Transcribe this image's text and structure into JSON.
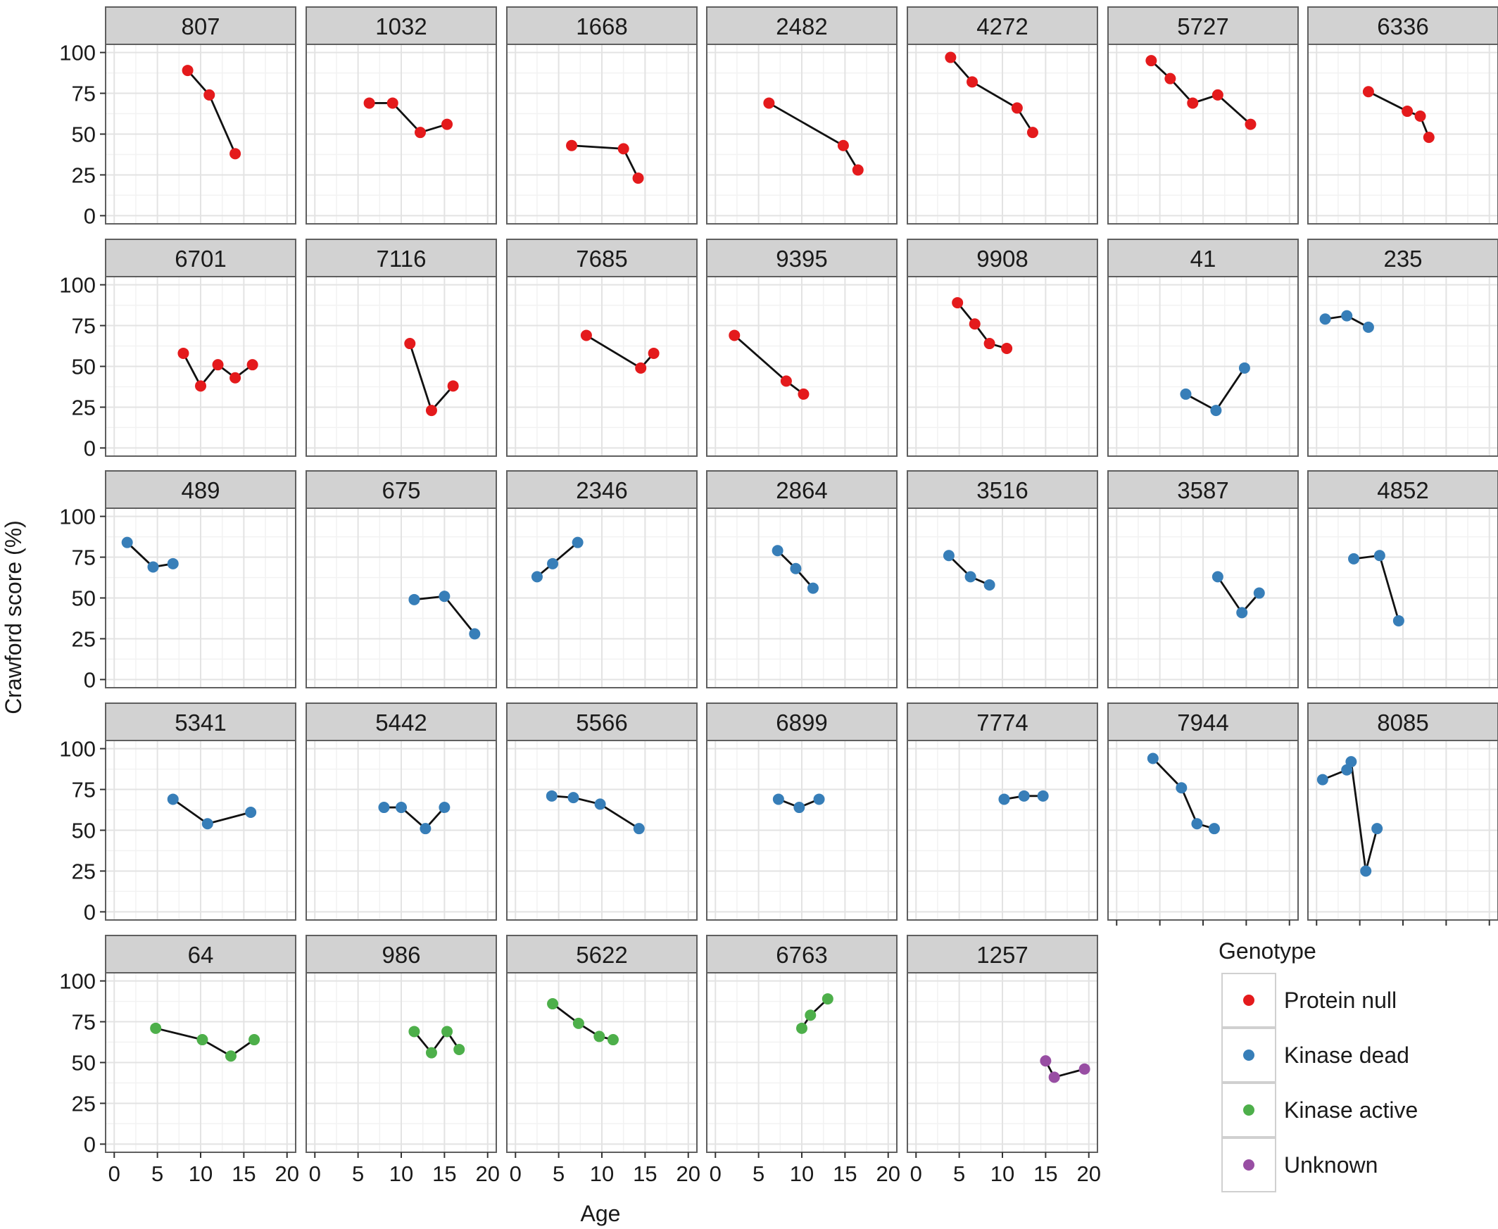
{
  "chart_data": {
    "type": "scatter",
    "layout": "faceted-line-scatter",
    "xlabel": "Age",
    "ylabel": "Crawford score (%)",
    "xticks": [
      0,
      5,
      10,
      15,
      20
    ],
    "yticks": [
      0,
      25,
      50,
      75,
      100
    ],
    "xlim": [
      -1,
      21
    ],
    "ylim": [
      -5,
      105
    ],
    "grid": true,
    "legend": {
      "title": "Genotype",
      "placement": "bottom-right",
      "entries": [
        {
          "name": "Protein null",
          "color": "#e41a1c"
        },
        {
          "name": "Kinase dead",
          "color": "#377eb8"
        },
        {
          "name": "Kinase active",
          "color": "#4daf4a"
        },
        {
          "name": "Unknown",
          "color": "#984ea3"
        }
      ]
    },
    "panels": [
      {
        "id": "807",
        "genotype": "Protein null",
        "points": [
          [
            8.5,
            89
          ],
          [
            11,
            74
          ],
          [
            14,
            38
          ]
        ]
      },
      {
        "id": "1032",
        "genotype": "Protein null",
        "points": [
          [
            6.3,
            69
          ],
          [
            9,
            69
          ],
          [
            12.2,
            51
          ],
          [
            15.3,
            56
          ]
        ]
      },
      {
        "id": "1668",
        "genotype": "Protein null",
        "points": [
          [
            6.5,
            43
          ],
          [
            12.5,
            41
          ],
          [
            14.2,
            23
          ]
        ]
      },
      {
        "id": "2482",
        "genotype": "Protein null",
        "points": [
          [
            6.2,
            69
          ],
          [
            14.8,
            43
          ],
          [
            16.5,
            28
          ]
        ]
      },
      {
        "id": "4272",
        "genotype": "Protein null",
        "points": [
          [
            4,
            97
          ],
          [
            6.5,
            82
          ],
          [
            11.7,
            66
          ],
          [
            13.5,
            51
          ]
        ]
      },
      {
        "id": "5727",
        "genotype": "Protein null",
        "points": [
          [
            4,
            95
          ],
          [
            6.2,
            84
          ],
          [
            8.8,
            69
          ],
          [
            11.7,
            74
          ],
          [
            15.5,
            56
          ]
        ]
      },
      {
        "id": "6336",
        "genotype": "Protein null",
        "points": [
          [
            6,
            76
          ],
          [
            10.5,
            64
          ],
          [
            12,
            61
          ],
          [
            13,
            48
          ]
        ]
      },
      {
        "id": "6701",
        "genotype": "Protein null",
        "points": [
          [
            8,
            58
          ],
          [
            10,
            38
          ],
          [
            12,
            51
          ],
          [
            14,
            43
          ],
          [
            16,
            51
          ]
        ]
      },
      {
        "id": "7116",
        "genotype": "Protein null",
        "points": [
          [
            11,
            64
          ],
          [
            13.5,
            23
          ],
          [
            16,
            38
          ]
        ]
      },
      {
        "id": "7685",
        "genotype": "Protein null",
        "points": [
          [
            8.2,
            69
          ],
          [
            14.5,
            49
          ],
          [
            16,
            58
          ]
        ]
      },
      {
        "id": "9395",
        "genotype": "Protein null",
        "points": [
          [
            2.2,
            69
          ],
          [
            8.2,
            41
          ],
          [
            10.2,
            33
          ]
        ]
      },
      {
        "id": "9908",
        "genotype": "Protein null",
        "points": [
          [
            4.8,
            89
          ],
          [
            6.8,
            76
          ],
          [
            8.5,
            64
          ],
          [
            10.5,
            61
          ]
        ]
      },
      {
        "id": "41",
        "genotype": "Kinase dead",
        "points": [
          [
            8,
            33
          ],
          [
            11.5,
            23
          ],
          [
            14.8,
            49
          ]
        ]
      },
      {
        "id": "235",
        "genotype": "Kinase dead",
        "points": [
          [
            1,
            79
          ],
          [
            3.5,
            81
          ],
          [
            6,
            74
          ]
        ]
      },
      {
        "id": "489",
        "genotype": "Kinase dead",
        "points": [
          [
            1.5,
            84
          ],
          [
            4.5,
            69
          ],
          [
            6.8,
            71
          ]
        ]
      },
      {
        "id": "675",
        "genotype": "Kinase dead",
        "points": [
          [
            11.5,
            49
          ],
          [
            15,
            51
          ],
          [
            18.5,
            28
          ]
        ]
      },
      {
        "id": "2346",
        "genotype": "Kinase dead",
        "points": [
          [
            2.5,
            63
          ],
          [
            4.3,
            71
          ],
          [
            7.2,
            84
          ]
        ]
      },
      {
        "id": "2864",
        "genotype": "Kinase dead",
        "points": [
          [
            7.2,
            79
          ],
          [
            9.3,
            68
          ],
          [
            11.3,
            56
          ]
        ]
      },
      {
        "id": "3516",
        "genotype": "Kinase dead",
        "points": [
          [
            3.8,
            76
          ],
          [
            6.3,
            63
          ],
          [
            8.5,
            58
          ]
        ]
      },
      {
        "id": "3587",
        "genotype": "Kinase dead",
        "points": [
          [
            11.7,
            63
          ],
          [
            14.5,
            41
          ],
          [
            16.5,
            53
          ]
        ]
      },
      {
        "id": "4852",
        "genotype": "Kinase dead",
        "points": [
          [
            4.3,
            74
          ],
          [
            7.3,
            76
          ],
          [
            9.5,
            36
          ]
        ]
      },
      {
        "id": "5341",
        "genotype": "Kinase dead",
        "points": [
          [
            6.8,
            69
          ],
          [
            10.8,
            54
          ],
          [
            15.8,
            61
          ]
        ]
      },
      {
        "id": "5442",
        "genotype": "Kinase dead",
        "points": [
          [
            8,
            64
          ],
          [
            10,
            64
          ],
          [
            12.8,
            51
          ],
          [
            15,
            64
          ]
        ]
      },
      {
        "id": "5566",
        "genotype": "Kinase dead",
        "points": [
          [
            4.2,
            71
          ],
          [
            6.7,
            70
          ],
          [
            9.8,
            66
          ],
          [
            14.3,
            51
          ]
        ]
      },
      {
        "id": "6899",
        "genotype": "Kinase dead",
        "points": [
          [
            7.3,
            69
          ],
          [
            9.7,
            64
          ],
          [
            12,
            69
          ]
        ]
      },
      {
        "id": "7774",
        "genotype": "Kinase dead",
        "points": [
          [
            10.2,
            69
          ],
          [
            12.5,
            71
          ],
          [
            14.7,
            71
          ]
        ]
      },
      {
        "id": "7944",
        "genotype": "Kinase dead",
        "points": [
          [
            4.2,
            94
          ],
          [
            7.5,
            76
          ],
          [
            9.3,
            54
          ],
          [
            11.3,
            51
          ]
        ]
      },
      {
        "id": "8085",
        "genotype": "Kinase dead",
        "points": [
          [
            0.7,
            81
          ],
          [
            3.5,
            87
          ],
          [
            4,
            92
          ],
          [
            5.7,
            25
          ],
          [
            7,
            51
          ]
        ]
      },
      {
        "id": "64",
        "genotype": "Kinase active",
        "points": [
          [
            4.8,
            71
          ],
          [
            10.2,
            64
          ],
          [
            13.5,
            54
          ],
          [
            16.2,
            64
          ]
        ]
      },
      {
        "id": "986",
        "genotype": "Kinase active",
        "points": [
          [
            11.5,
            69
          ],
          [
            13.5,
            56
          ],
          [
            15.3,
            69
          ],
          [
            16.7,
            58
          ]
        ]
      },
      {
        "id": "5622",
        "genotype": "Kinase active",
        "points": [
          [
            4.3,
            86
          ],
          [
            7.3,
            74
          ],
          [
            9.7,
            66
          ],
          [
            11.3,
            64
          ]
        ]
      },
      {
        "id": "6763",
        "genotype": "Kinase active",
        "points": [
          [
            10,
            71
          ],
          [
            11,
            79
          ],
          [
            13,
            89
          ]
        ]
      },
      {
        "id": "1257",
        "genotype": "Unknown",
        "points": [
          [
            15,
            51
          ],
          [
            16,
            41
          ],
          [
            19.5,
            46
          ]
        ]
      }
    ]
  }
}
